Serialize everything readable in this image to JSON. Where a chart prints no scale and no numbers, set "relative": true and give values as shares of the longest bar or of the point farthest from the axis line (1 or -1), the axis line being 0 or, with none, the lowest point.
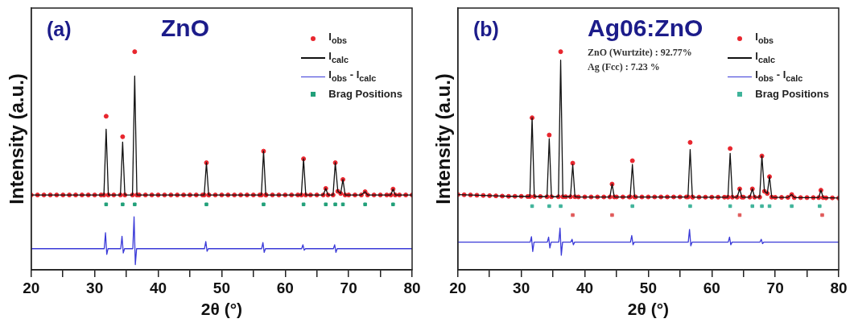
{
  "chart_data": [
    {
      "type": "line",
      "title": "ZnO",
      "xlabel": "2θ (°)",
      "ylabel": "Intensity (a.u.)",
      "annotations": [
        "(a)"
      ],
      "relative": true,
      "tick_labels": "x",
      "legend": "top right",
      "grid": false,
      "xlim": [
        20,
        80
      ],
      "xticks": [
        20,
        {
          "value": 25,
          "label": null
        },
        30,
        {
          "value": 35,
          "label": null
        },
        40,
        {
          "value": 45,
          "label": null
        },
        50,
        {
          "value": 55,
          "label": null
        },
        60,
        {
          "value": 65,
          "label": null
        },
        70,
        {
          "value": 75,
          "label": null
        },
        80
      ],
      "x": [
        20,
        21,
        22,
        23,
        24,
        25,
        26,
        27,
        28,
        29,
        30,
        31,
        31.45,
        31.8,
        32.15,
        33,
        34.05,
        34.4,
        34.75,
        35.95,
        36.3,
        36.65,
        37,
        38,
        39,
        40,
        41,
        42,
        43,
        44,
        45,
        46,
        47,
        47.25,
        47.6,
        47.95,
        48,
        49,
        50,
        51,
        52,
        53,
        54,
        55,
        56,
        56.25,
        56.6,
        56.95,
        57,
        58,
        59,
        60,
        61,
        62,
        62.55,
        62.9,
        63.25,
        64,
        65,
        66,
        66.4,
        66.75,
        67.55,
        67.9,
        68.3,
        68.75,
        69.1,
        69.45,
        70,
        71,
        72,
        72.6,
        73,
        74,
        75,
        76,
        76.65,
        77,
        77.35,
        78,
        79,
        80
      ],
      "series": [
        {
          "name": "I$_{obs}$",
          "type": "scatter",
          "marker": "circle",
          "color": "#e8262e",
          "values": [
            0.343,
            0.343,
            0.343,
            0.343,
            0.343,
            0.343,
            0.343,
            0.343,
            0.343,
            0.343,
            0.343,
            0.343,
            0.343,
            0.704,
            0.343,
            0.343,
            0.343,
            0.61,
            0.343,
            0.343,
            1,
            0.343,
            0.343,
            0.343,
            0.343,
            0.343,
            0.343,
            0.343,
            0.343,
            0.343,
            0.343,
            0.343,
            0.343,
            0.343,
            0.491,
            0.343,
            0.343,
            0.343,
            0.343,
            0.343,
            0.343,
            0.343,
            0.343,
            0.343,
            0.343,
            0.343,
            0.544,
            0.343,
            0.343,
            0.343,
            0.343,
            0.343,
            0.343,
            0.343,
            0.343,
            0.509,
            0.343,
            0.343,
            0.343,
            0.343,
            0.373,
            0.343,
            0.343,
            0.491,
            0.36,
            0.35,
            0.414,
            0.343,
            0.343,
            0.343,
            0.343,
            0.358,
            0.343,
            0.343,
            0.343,
            0.343,
            0.343,
            0.37,
            0.343,
            0.343,
            0.343,
            0.343
          ]
        },
        {
          "name": "I$_{calc}$",
          "marker": "none",
          "color": "#111111",
          "values": [
            0.343,
            0.343,
            0.343,
            0.343,
            0.343,
            0.343,
            0.343,
            0.343,
            0.343,
            0.343,
            0.343,
            0.343,
            0.343,
            0.645,
            0.343,
            0.343,
            0.343,
            0.586,
            0.343,
            0.343,
            0.888,
            0.343,
            0.343,
            0.343,
            0.343,
            0.343,
            0.343,
            0.343,
            0.343,
            0.343,
            0.343,
            0.343,
            0.343,
            0.343,
            0.491,
            0.343,
            0.343,
            0.343,
            0.343,
            0.343,
            0.343,
            0.343,
            0.343,
            0.343,
            0.343,
            0.343,
            0.544,
            0.343,
            0.343,
            0.343,
            0.343,
            0.343,
            0.343,
            0.343,
            0.343,
            0.509,
            0.343,
            0.343,
            0.343,
            0.343,
            0.373,
            0.343,
            0.343,
            0.491,
            0.36,
            0.35,
            0.414,
            0.343,
            0.343,
            0.343,
            0.343,
            0.358,
            0.343,
            0.343,
            0.343,
            0.343,
            0.343,
            0.37,
            0.343,
            0.343,
            0.343,
            0.343
          ]
        },
        {
          "name": "I$_{obs}$ - I$_{calc}$",
          "marker": "none",
          "color": "#3a3ad8",
          "x": [
            20,
            31.5,
            31.7,
            31.9,
            32.1,
            34.1,
            34.3,
            34.5,
            34.7,
            36.0,
            36.2,
            36.4,
            36.6,
            47.3,
            47.5,
            47.7,
            47.9,
            56.3,
            56.5,
            56.7,
            56.9,
            62.6,
            62.8,
            63.0,
            63.2,
            67.6,
            67.8,
            68.0,
            68.2,
            80
          ],
          "values": [
            0.097,
            0.097,
            0.17,
            0.071,
            0.097,
            0.097,
            0.154,
            0.077,
            0.097,
            0.097,
            0.243,
            0.024,
            0.097,
            0.097,
            0.13,
            0.085,
            0.097,
            0.097,
            0.125,
            0.08,
            0.097,
            0.097,
            0.115,
            0.09,
            0.097,
            0.097,
            0.115,
            0.08,
            0.097,
            0.097
          ]
        },
        {
          "name": "Brag Positions",
          "type": "scatter",
          "marker": "square",
          "color": "#22a07a",
          "x": [
            31.8,
            34.4,
            36.3,
            47.6,
            56.6,
            62.9,
            66.4,
            67.9,
            69.1,
            72.6,
            77.0
          ],
          "values": [
            0.3,
            0.3,
            0.3,
            0.3,
            0.3,
            0.3,
            0.3,
            0.3,
            0.3,
            0.3,
            0.3
          ]
        }
      ]
    },
    {
      "type": "line",
      "title": "Ag06:ZnO",
      "xlabel": "2θ (°)",
      "ylabel": "Intensity (a.u.)",
      "annotations": [
        "(b)",
        "ZnO (Wurtzite) : 92.77%",
        "Ag (Fcc) : 7.23 %"
      ],
      "relative": true,
      "tick_labels": "x",
      "legend": "top right",
      "grid": false,
      "xlim": [
        20,
        80
      ],
      "xticks": [
        20,
        {
          "value": 25,
          "label": null
        },
        30,
        {
          "value": 35,
          "label": null
        },
        40,
        {
          "value": 45,
          "label": null
        },
        50,
        {
          "value": 55,
          "label": null
        },
        60,
        {
          "value": 65,
          "label": null
        },
        70,
        {
          "value": 75,
          "label": null
        },
        80
      ],
      "x": [
        20,
        21,
        22,
        23,
        24,
        25,
        26,
        27,
        28,
        29,
        30,
        31,
        31.35,
        31.7,
        32.05,
        33,
        34.05,
        34.4,
        34.75,
        35.85,
        36.2,
        36.55,
        37,
        37.75,
        38.1,
        38.45,
        39,
        40,
        41,
        42,
        43,
        43.95,
        44.3,
        44.65,
        45,
        46,
        47,
        47.15,
        47.5,
        47.85,
        48,
        49,
        50,
        51,
        52,
        53,
        54,
        55,
        56,
        56.25,
        56.6,
        56.95,
        57,
        58,
        59,
        60,
        61,
        62,
        62.55,
        62.9,
        63.25,
        64,
        64.4,
        64.75,
        65,
        66,
        66.4,
        66.75,
        67.55,
        67.9,
        68.3,
        68.75,
        69.1,
        69.45,
        70,
        71,
        72,
        72.6,
        73,
        74,
        75,
        76,
        76.85,
        77.2,
        77.55,
        78,
        79,
        80
      ],
      "series": [
        {
          "name": "I$_{obs}$",
          "type": "scatter",
          "marker": "circle",
          "color": "#e8262e",
          "values": [
            0.345,
            0.344,
            0.343,
            0.342,
            0.341,
            0.34,
            0.339,
            0.338,
            0.337,
            0.337,
            0.337,
            0.336,
            0.336,
            0.697,
            0.336,
            0.336,
            0.335,
            0.618,
            0.335,
            0.335,
            1,
            0.335,
            0.335,
            0.335,
            0.489,
            0.335,
            0.334,
            0.334,
            0.334,
            0.334,
            0.334,
            0.334,
            0.393,
            0.334,
            0.334,
            0.334,
            0.334,
            0.334,
            0.5,
            0.334,
            0.334,
            0.334,
            0.334,
            0.334,
            0.334,
            0.334,
            0.334,
            0.334,
            0.334,
            0.334,
            0.584,
            0.334,
            0.333,
            0.333,
            0.333,
            0.333,
            0.333,
            0.333,
            0.333,
            0.556,
            0.333,
            0.333,
            0.371,
            0.333,
            0.333,
            0.333,
            0.371,
            0.333,
            0.333,
            0.522,
            0.36,
            0.35,
            0.427,
            0.333,
            0.332,
            0.332,
            0.332,
            0.345,
            0.331,
            0.331,
            0.331,
            0.331,
            0.331,
            0.365,
            0.331,
            0.33,
            0.33,
            0.329
          ]
        },
        {
          "name": "I$_{calc}$",
          "marker": "none",
          "color": "#111111",
          "values": [
            0.345,
            0.344,
            0.343,
            0.342,
            0.341,
            0.34,
            0.339,
            0.338,
            0.337,
            0.337,
            0.337,
            0.336,
            0.336,
            0.697,
            0.336,
            0.336,
            0.335,
            0.601,
            0.335,
            0.335,
            0.961,
            0.335,
            0.335,
            0.335,
            0.483,
            0.335,
            0.334,
            0.334,
            0.334,
            0.334,
            0.334,
            0.334,
            0.393,
            0.334,
            0.334,
            0.334,
            0.334,
            0.334,
            0.483,
            0.334,
            0.334,
            0.334,
            0.334,
            0.334,
            0.334,
            0.334,
            0.334,
            0.334,
            0.334,
            0.334,
            0.551,
            0.334,
            0.333,
            0.333,
            0.333,
            0.333,
            0.333,
            0.333,
            0.333,
            0.534,
            0.333,
            0.333,
            0.371,
            0.333,
            0.333,
            0.333,
            0.371,
            0.333,
            0.333,
            0.522,
            0.36,
            0.35,
            0.427,
            0.333,
            0.332,
            0.332,
            0.332,
            0.345,
            0.331,
            0.331,
            0.331,
            0.331,
            0.331,
            0.365,
            0.331,
            0.33,
            0.33,
            0.329
          ]
        },
        {
          "name": "I$_{obs}$ - I$_{calc}$",
          "marker": "none",
          "color": "#3a3ad8",
          "x": [
            20,
            31.4,
            31.6,
            31.8,
            32.0,
            34.1,
            34.3,
            34.5,
            34.7,
            35.9,
            36.1,
            36.3,
            36.5,
            37.8,
            38.0,
            38.2,
            38.4,
            47.2,
            47.4,
            47.6,
            47.8,
            56.3,
            56.5,
            56.7,
            56.9,
            62.6,
            62.8,
            63.0,
            63.2,
            67.6,
            67.8,
            68.0,
            68.2,
            80
          ],
          "values": [
            0.127,
            0.127,
            0.152,
            0.084,
            0.127,
            0.127,
            0.15,
            0.1,
            0.127,
            0.127,
            0.191,
            0.067,
            0.127,
            0.127,
            0.14,
            0.115,
            0.127,
            0.127,
            0.157,
            0.115,
            0.127,
            0.127,
            0.185,
            0.11,
            0.127,
            0.127,
            0.15,
            0.115,
            0.127,
            0.127,
            0.14,
            0.12,
            0.127,
            0.127
          ]
        },
        {
          "name": "Brag Positions",
          "type": "scatter",
          "marker": "square",
          "color": "#3fb39a",
          "x": [
            31.7,
            34.4,
            36.2,
            47.5,
            56.6,
            62.9,
            66.4,
            67.9,
            69.1,
            72.6,
            77.0
          ],
          "values": [
            0.292,
            0.292,
            0.292,
            0.292,
            0.292,
            0.292,
            0.292,
            0.292,
            0.292,
            0.292,
            0.292
          ]
        },
        {
          "type": "scatter",
          "marker": "square",
          "color": "#e05a5a",
          "x": [
            38.1,
            44.3,
            64.4,
            77.4
          ],
          "values": [
            0.251,
            0.251,
            0.251,
            0.251
          ]
        }
      ]
    }
  ]
}
